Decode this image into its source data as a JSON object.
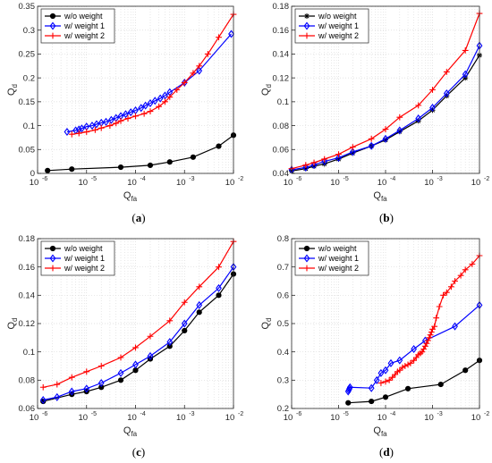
{
  "colors": {
    "w_o_weight": "#000000",
    "w_weight_1": "#0000ff",
    "w_weight_2": "#ff0000",
    "grid": "#d9d9d9",
    "axis": "#262626"
  },
  "legend_position": "top-left",
  "chart_data": [
    {
      "panel": "(a)",
      "caption_paren_open": "(",
      "caption_letter": "a",
      "caption_paren_close": ")",
      "type": "line",
      "x_scale": "log",
      "xlabel_base": "Q",
      "xlabel_sub": "fa",
      "ylabel_base": "Q",
      "ylabel_sub": "d",
      "xlim": [
        1e-06,
        0.01
      ],
      "ylim": [
        0,
        0.35
      ],
      "yticks": [
        0,
        0.05,
        0.1,
        0.15,
        0.2,
        0.25,
        0.3,
        0.35
      ],
      "ytick_labels": [
        "0",
        "0.05",
        "0.1",
        "0.15",
        "0.2",
        "0.25",
        "0.3",
        "0.35"
      ],
      "legend": "top-left",
      "series": [
        {
          "name": "w/o weight",
          "marker": "dot",
          "x": [
            1.6e-06,
            5e-06,
            5e-05,
            0.0002,
            0.0005,
            0.0015,
            0.005,
            0.01
          ],
          "y": [
            0.006,
            0.009,
            0.013,
            0.017,
            0.024,
            0.034,
            0.057,
            0.08
          ]
        },
        {
          "name": "w/ weight 1",
          "marker": "diamond",
          "x": [
            4e-06,
            6e-06,
            7e-06,
            8e-06,
            1e-05,
            1.3e-05,
            1.6e-05,
            2e-05,
            2.5e-05,
            3.2e-05,
            4e-05,
            5e-05,
            6.3e-05,
            8e-05,
            0.0001,
            0.00013,
            0.00016,
            0.0002,
            0.00025,
            0.00032,
            0.0004,
            0.0005,
            0.001,
            0.002,
            0.009
          ],
          "y": [
            0.087,
            0.09,
            0.092,
            0.094,
            0.098,
            0.1,
            0.103,
            0.106,
            0.108,
            0.112,
            0.116,
            0.12,
            0.124,
            0.128,
            0.132,
            0.137,
            0.142,
            0.147,
            0.152,
            0.157,
            0.163,
            0.17,
            0.19,
            0.215,
            0.292
          ]
        },
        {
          "name": "w/ weight 2",
          "marker": "plus",
          "x": [
            5e-06,
            7e-06,
            1e-05,
            1.5e-05,
            2e-05,
            3e-05,
            4e-05,
            5e-05,
            7e-05,
            0.0001,
            0.00015,
            0.0002,
            0.0003,
            0.0004,
            0.0005,
            0.0007,
            0.001,
            0.0015,
            0.002,
            0.003,
            0.005,
            0.01
          ],
          "y": [
            0.082,
            0.084,
            0.087,
            0.091,
            0.095,
            0.1,
            0.105,
            0.11,
            0.115,
            0.12,
            0.125,
            0.13,
            0.14,
            0.15,
            0.16,
            0.175,
            0.19,
            0.21,
            0.225,
            0.25,
            0.285,
            0.333
          ]
        }
      ]
    },
    {
      "panel": "(b)",
      "caption_paren_open": "(",
      "caption_letter": "b",
      "caption_paren_close": ")",
      "type": "line",
      "x_scale": "log",
      "xlabel_base": "Q",
      "xlabel_sub": "fa",
      "ylabel_base": "Q",
      "ylabel_sub": "d",
      "xlim": [
        1e-06,
        0.01
      ],
      "ylim": [
        0.04,
        0.18
      ],
      "yticks": [
        0.04,
        0.06,
        0.08,
        0.1,
        0.12,
        0.14,
        0.16,
        0.18
      ],
      "ytick_labels": [
        "0.04",
        "0.06",
        "0.08",
        "0.1",
        "0.12",
        "0.14",
        "0.16",
        "0.18"
      ],
      "legend": "top-left",
      "series": [
        {
          "name": "w/o weight",
          "marker": "star",
          "x": [
            1e-06,
            2e-06,
            3e-06,
            5e-06,
            1e-05,
            2e-05,
            5e-05,
            0.0001,
            0.0002,
            0.0005,
            0.001,
            0.002,
            0.005,
            0.01
          ],
          "y": [
            0.042,
            0.044,
            0.046,
            0.048,
            0.052,
            0.057,
            0.063,
            0.068,
            0.075,
            0.084,
            0.093,
            0.105,
            0.12,
            0.139
          ]
        },
        {
          "name": "w/ weight 1",
          "marker": "diamond",
          "x": [
            1e-06,
            2e-06,
            3e-06,
            5e-06,
            1e-05,
            2e-05,
            5e-05,
            0.0001,
            0.0002,
            0.0005,
            0.001,
            0.002,
            0.005,
            0.01
          ],
          "y": [
            0.043,
            0.045,
            0.047,
            0.05,
            0.053,
            0.058,
            0.063,
            0.069,
            0.076,
            0.086,
            0.095,
            0.107,
            0.123,
            0.147
          ]
        },
        {
          "name": "w/ weight 2",
          "marker": "plus",
          "x": [
            1e-06,
            2e-06,
            3e-06,
            5e-06,
            1e-05,
            2e-05,
            5e-05,
            0.0001,
            0.0002,
            0.0005,
            0.001,
            0.002,
            0.005,
            0.01
          ],
          "y": [
            0.044,
            0.047,
            0.049,
            0.052,
            0.056,
            0.062,
            0.069,
            0.077,
            0.087,
            0.097,
            0.11,
            0.125,
            0.143,
            0.174
          ]
        }
      ]
    },
    {
      "panel": "(c)",
      "caption_paren_open": "(",
      "caption_letter": "c",
      "caption_paren_close": ")",
      "type": "line",
      "x_scale": "log",
      "xlabel_base": "Q",
      "xlabel_sub": "fa",
      "ylabel_base": "Q",
      "ylabel_sub": "d",
      "xlim": [
        1e-06,
        0.01
      ],
      "ylim": [
        0.06,
        0.18
      ],
      "yticks": [
        0.06,
        0.08,
        0.1,
        0.12,
        0.14,
        0.16,
        0.18
      ],
      "ytick_labels": [
        "0.06",
        "0.08",
        "0.1",
        "0.12",
        "0.14",
        "0.16",
        "0.18"
      ],
      "legend": "top-left",
      "series": [
        {
          "name": "w/o weight",
          "marker": "dot",
          "x": [
            1.3e-06,
            5e-06,
            1e-05,
            2e-05,
            5e-05,
            0.0001,
            0.0002,
            0.0005,
            0.001,
            0.002,
            0.005,
            0.01
          ],
          "y": [
            0.065,
            0.07,
            0.072,
            0.075,
            0.08,
            0.087,
            0.095,
            0.104,
            0.115,
            0.128,
            0.14,
            0.155
          ]
        },
        {
          "name": "w/ weight 1",
          "marker": "diamond",
          "x": [
            1.3e-06,
            2.5e-06,
            5e-06,
            1e-05,
            2e-05,
            5e-05,
            0.0001,
            0.0002,
            0.0005,
            0.001,
            0.002,
            0.005,
            0.01
          ],
          "y": [
            0.066,
            0.068,
            0.072,
            0.074,
            0.078,
            0.085,
            0.091,
            0.097,
            0.107,
            0.12,
            0.133,
            0.145,
            0.16
          ]
        },
        {
          "name": "w/ weight 2",
          "marker": "plus",
          "x": [
            1.3e-06,
            2.5e-06,
            5e-06,
            1e-05,
            2e-05,
            5e-05,
            0.0001,
            0.0002,
            0.0005,
            0.001,
            0.002,
            0.005,
            0.01
          ],
          "y": [
            0.075,
            0.077,
            0.082,
            0.086,
            0.09,
            0.096,
            0.103,
            0.111,
            0.122,
            0.135,
            0.146,
            0.16,
            0.178
          ]
        }
      ]
    },
    {
      "panel": "(d)",
      "caption_paren_open": "(",
      "caption_letter": "d",
      "caption_paren_close": ")",
      "type": "line",
      "x_scale": "log",
      "xlabel_base": "Q",
      "xlabel_sub": "fa",
      "ylabel_base": "Q",
      "ylabel_sub": "d",
      "xlim": [
        1e-06,
        0.01
      ],
      "ylim": [
        0.2,
        0.8
      ],
      "yticks": [
        0.2,
        0.3,
        0.4,
        0.5,
        0.6,
        0.7,
        0.8
      ],
      "ytick_labels": [
        "0.2",
        "0.3",
        "0.4",
        "0.5",
        "0.6",
        "0.7",
        "0.8"
      ],
      "legend": "top-left",
      "series": [
        {
          "name": "w/o weight",
          "marker": "dot",
          "x": [
            1.6e-05,
            5e-05,
            0.0001,
            0.0003,
            0.0015,
            0.005,
            0.01
          ],
          "y": [
            0.22,
            0.225,
            0.24,
            0.27,
            0.285,
            0.335,
            0.37
          ]
        },
        {
          "name": "w/ weight 1",
          "marker": "diamond",
          "x": [
            1.6e-05,
            1.65e-05,
            1.7e-05,
            1.75e-05,
            5e-05,
            6.5e-05,
            8e-05,
            0.0001,
            0.00013,
            0.0002,
            0.0004,
            0.0007,
            0.003,
            0.01
          ],
          "y": [
            0.26,
            0.265,
            0.27,
            0.275,
            0.272,
            0.3,
            0.325,
            0.335,
            0.36,
            0.37,
            0.41,
            0.44,
            0.49,
            0.565
          ]
        },
        {
          "name": "w/ weight 2",
          "marker": "plus",
          "x": [
            8e-05,
            0.0001,
            0.00012,
            0.00014,
            0.00016,
            0.00018,
            0.0002,
            0.00023,
            0.00026,
            0.0003,
            0.00034,
            0.0004,
            0.00045,
            0.0005,
            0.00055,
            0.0006,
            0.00065,
            0.0007,
            0.00075,
            0.0008,
            0.00085,
            0.0009,
            0.00095,
            0.001,
            0.0011,
            0.0012,
            0.0014,
            0.0017,
            0.002,
            0.0025,
            0.003,
            0.004,
            0.005,
            0.007,
            0.01
          ],
          "y": [
            0.29,
            0.295,
            0.3,
            0.31,
            0.32,
            0.33,
            0.335,
            0.345,
            0.35,
            0.355,
            0.36,
            0.37,
            0.38,
            0.39,
            0.395,
            0.4,
            0.41,
            0.42,
            0.43,
            0.44,
            0.45,
            0.46,
            0.47,
            0.48,
            0.49,
            0.52,
            0.56,
            0.6,
            0.61,
            0.63,
            0.65,
            0.67,
            0.69,
            0.71,
            0.74
          ]
        }
      ]
    }
  ]
}
